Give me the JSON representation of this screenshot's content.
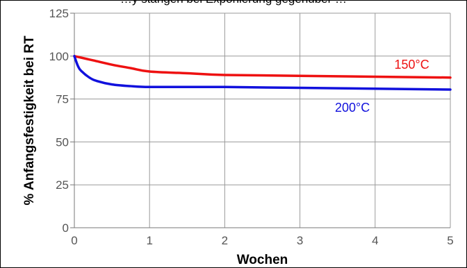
{
  "top_caption": "…y stängen bei Exponierung gegenüber …",
  "chart_data": {
    "type": "line",
    "xlabel": "Wochen",
    "ylabel": "% Anfangsfestigkeit bei RT",
    "xlim": [
      0,
      5
    ],
    "ylim": [
      0,
      125
    ],
    "x_ticks": [
      "0",
      "1",
      "2",
      "3",
      "4",
      "5"
    ],
    "y_ticks": [
      "0",
      "25",
      "50",
      "75",
      "100",
      "125"
    ],
    "grid": true,
    "series": [
      {
        "name": "150°C",
        "color": "#ee1111",
        "x": [
          0,
          0.25,
          0.5,
          0.75,
          1,
          1.5,
          2,
          3,
          4,
          5
        ],
        "y": [
          100,
          97.5,
          95,
          93,
          91,
          90,
          89,
          88.5,
          88,
          87.5
        ]
      },
      {
        "name": "200°C",
        "color": "#1111dd",
        "x": [
          0,
          0.05,
          0.1,
          0.2,
          0.3,
          0.5,
          0.75,
          1,
          1.5,
          2,
          3,
          4,
          5
        ],
        "y": [
          100,
          94,
          91,
          87.5,
          85.5,
          83.5,
          82.5,
          82,
          82,
          82,
          81.5,
          81,
          80.5
        ]
      }
    ]
  }
}
